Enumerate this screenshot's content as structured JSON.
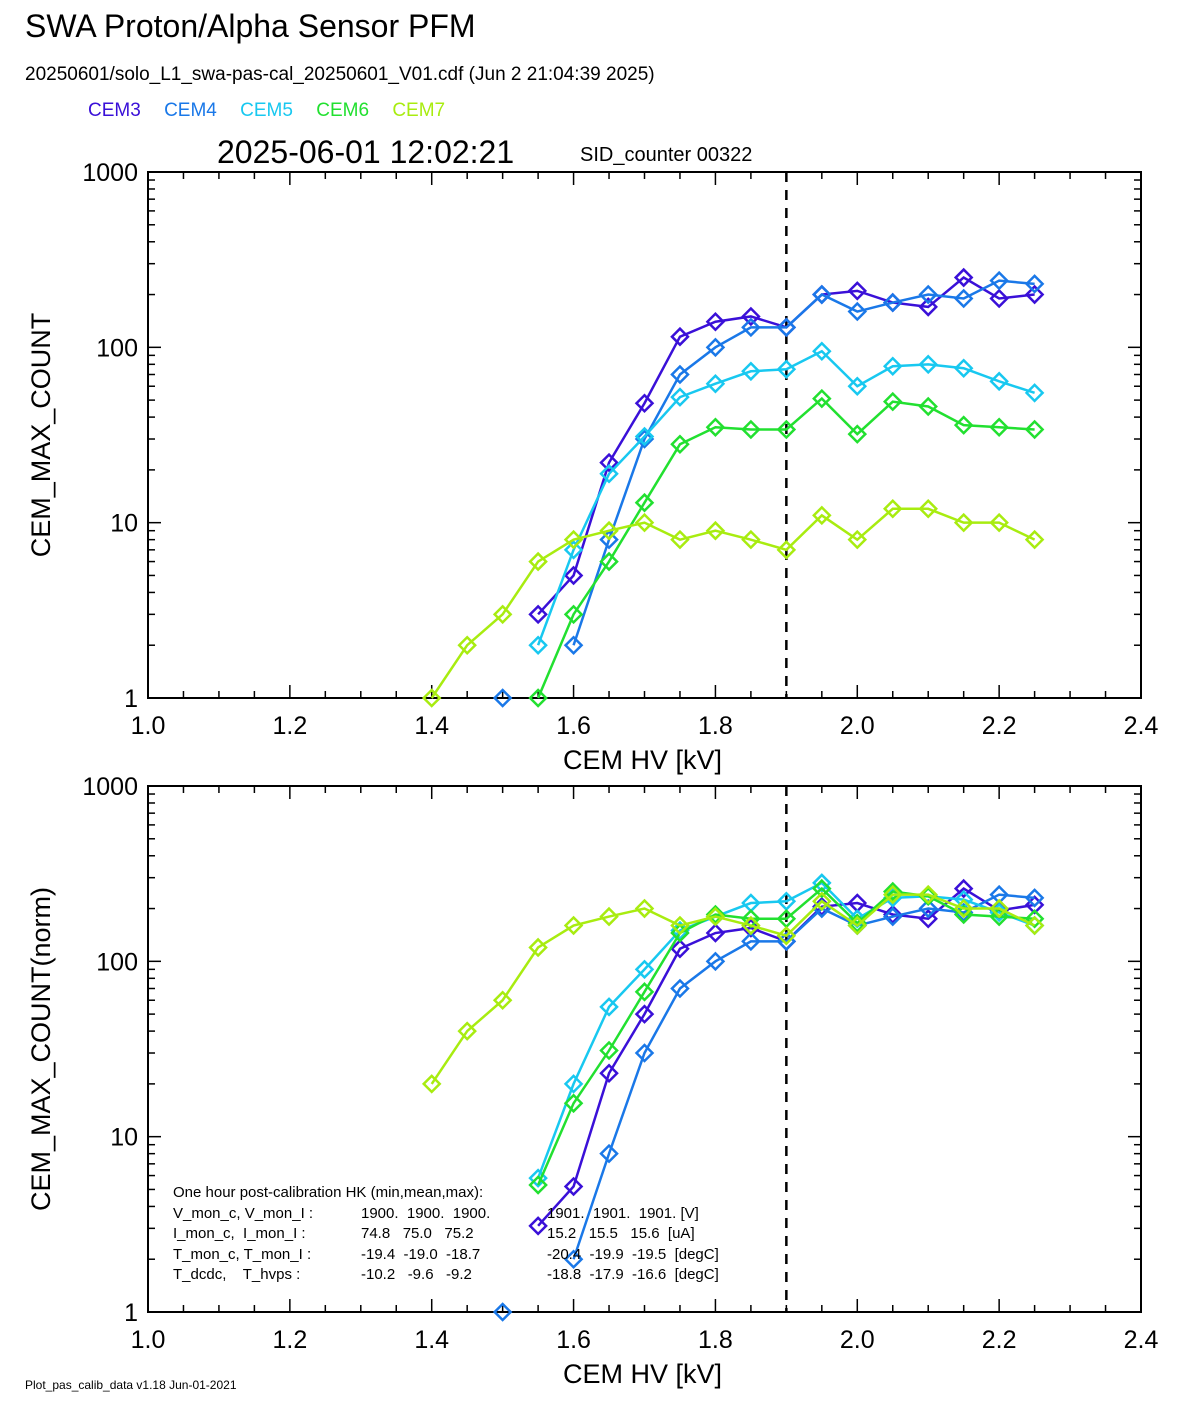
{
  "title": "SWA Proton/Alpha Sensor PFM",
  "subtitle": "20250601/solo_L1_swa-pas-cal_20250601_V01.cdf  (Jun  2 21:04:39 2025)",
  "timestamp": "2025-06-01 12:02:21",
  "sid_counter": "SID_counter 00322",
  "footer": "Plot_pas_calib_data v1.18 Jun-01-2021",
  "legend": [
    {
      "name": "CEM3",
      "color": "#3a10d8"
    },
    {
      "name": "CEM4",
      "color": "#1a78e8"
    },
    {
      "name": "CEM5",
      "color": "#18c8f0"
    },
    {
      "name": "CEM6",
      "color": "#22e030"
    },
    {
      "name": "CEM7",
      "color": "#a8ec10"
    }
  ],
  "hk": {
    "header": "One hour post-calibration HK (min,mean,max):",
    "rows": [
      {
        "label": "V_mon_c, V_mon_I :",
        "c": "1900.  1900.  1900.",
        "i": "1901.  1901.  1901. [V]"
      },
      {
        "label": "I_mon_c,  I_mon_I :",
        "c": "74.8   75.0   75.2",
        "i": "15.2   15.5   15.6  [uA]"
      },
      {
        "label": "T_mon_c, T_mon_I :",
        "c": "-19.4  -19.0  -18.7",
        "i": "-20.4  -19.9  -19.5  [degC]"
      },
      {
        "label": "T_dcdc,    T_hvps :",
        "c": "-10.2   -9.6   -9.2",
        "i": "-18.8  -17.9  -16.6  [degC]"
      }
    ]
  },
  "chart_data": [
    {
      "type": "line",
      "xlabel": "CEM HV [kV]",
      "ylabel": "CEM_MAX_COUNT",
      "xlim": [
        1.0,
        2.4
      ],
      "ylim": [
        1,
        1000
      ],
      "yscale": "log",
      "xticks": [
        "1.0",
        "1.2",
        "1.4",
        "1.6",
        "1.8",
        "2.0",
        "2.2",
        "2.4"
      ],
      "yticks": [
        "1",
        "10",
        "100",
        "1000"
      ],
      "vline_x": 1.9,
      "x": [
        1.4,
        1.45,
        1.5,
        1.55,
        1.6,
        1.65,
        1.7,
        1.75,
        1.8,
        1.85,
        1.9,
        1.95,
        2.0,
        2.05,
        2.1,
        2.15,
        2.2,
        2.25
      ],
      "series": [
        {
          "name": "CEM3",
          "values": [
            null,
            null,
            null,
            3,
            5,
            22,
            48,
            115,
            140,
            150,
            130,
            200,
            210,
            180,
            170,
            250,
            190,
            200
          ]
        },
        {
          "name": "CEM4",
          "values": [
            null,
            null,
            1,
            null,
            2,
            8,
            30,
            70,
            100,
            130,
            130,
            200,
            160,
            180,
            200,
            190,
            240,
            230
          ]
        },
        {
          "name": "CEM5",
          "values": [
            null,
            null,
            null,
            2,
            7,
            19,
            31,
            52,
            62,
            73,
            75,
            95,
            60,
            78,
            80,
            76,
            64,
            55
          ]
        },
        {
          "name": "CEM6",
          "values": [
            null,
            null,
            null,
            1,
            3,
            6,
            13,
            28,
            35,
            34,
            34,
            51,
            32,
            49,
            46,
            36,
            35,
            34
          ]
        },
        {
          "name": "CEM7",
          "values": [
            1,
            2,
            3,
            6,
            8,
            9,
            10,
            8,
            9,
            8,
            7,
            11,
            8,
            12,
            12,
            10,
            10,
            8
          ]
        }
      ]
    },
    {
      "type": "line",
      "xlabel": "CEM HV [kV]",
      "ylabel": "CEM_MAX_COUNT(norm)",
      "xlim": [
        1.0,
        2.4
      ],
      "ylim": [
        1,
        1000
      ],
      "yscale": "log",
      "xticks": [
        "1.0",
        "1.2",
        "1.4",
        "1.6",
        "1.8",
        "2.0",
        "2.2",
        "2.4"
      ],
      "yticks": [
        "1",
        "10",
        "100",
        "1000"
      ],
      "vline_x": 1.9,
      "x": [
        1.4,
        1.45,
        1.5,
        1.55,
        1.6,
        1.65,
        1.7,
        1.75,
        1.8,
        1.85,
        1.9,
        1.95,
        2.0,
        2.05,
        2.1,
        2.15,
        2.2,
        2.25
      ],
      "series": [
        {
          "name": "CEM3",
          "values": [
            null,
            null,
            null,
            3.1,
            5.2,
            23,
            50,
            118,
            145,
            155,
            130,
            205,
            215,
            185,
            175,
            260,
            195,
            210
          ]
        },
        {
          "name": "CEM4",
          "values": [
            null,
            null,
            1,
            null,
            2,
            8,
            30,
            70,
            100,
            130,
            130,
            200,
            160,
            180,
            200,
            190,
            240,
            230
          ]
        },
        {
          "name": "CEM5",
          "values": [
            null,
            null,
            null,
            5.8,
            20,
            55,
            90,
            150,
            180,
            215,
            220,
            280,
            175,
            230,
            235,
            225,
            190,
            160
          ]
        },
        {
          "name": "CEM6",
          "values": [
            null,
            null,
            null,
            5.3,
            15.5,
            31,
            67,
            145,
            185,
            175,
            175,
            260,
            165,
            250,
            235,
            185,
            180,
            175
          ]
        },
        {
          "name": "CEM7",
          "values": [
            20,
            40,
            60,
            120,
            160,
            180,
            200,
            160,
            180,
            160,
            140,
            220,
            160,
            240,
            240,
            200,
            200,
            160
          ]
        }
      ]
    }
  ]
}
